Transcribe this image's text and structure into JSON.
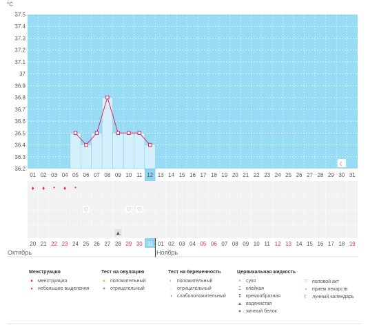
{
  "chart_data": {
    "type": "bar",
    "unit_label": "°C",
    "y_ticks": [
      "37.5",
      "37.4",
      "37.3",
      "37.2",
      "37.1",
      "37",
      "36.9",
      "36.8",
      "36.7",
      "36.6",
      "36.5",
      "36.4",
      "36.3",
      "36.2"
    ],
    "ylim": [
      36.2,
      37.5
    ],
    "grid": true,
    "days_top": [
      "01",
      "02",
      "03",
      "04",
      "05",
      "06",
      "07",
      "08",
      "09",
      "10",
      "11",
      "12",
      "13",
      "14",
      "15",
      "16",
      "17",
      "18",
      "19",
      "20",
      "21",
      "22",
      "23",
      "24",
      "25",
      "26",
      "27",
      "28",
      "29",
      "30",
      "31"
    ],
    "days_bottom": [
      "20",
      "21",
      "22",
      "23",
      "24",
      "25",
      "26",
      "27",
      "28",
      "29",
      "30",
      "31",
      "01",
      "02",
      "03",
      "04",
      "05",
      "06",
      "07",
      "08",
      "09",
      "10",
      "11",
      "12",
      "13",
      "14",
      "15",
      "16",
      "17",
      "18",
      "19"
    ],
    "days_bottom_red": [
      false,
      false,
      true,
      true,
      false,
      false,
      false,
      false,
      false,
      true,
      true,
      false,
      false,
      false,
      false,
      false,
      true,
      true,
      false,
      false,
      false,
      false,
      false,
      true,
      true,
      false,
      false,
      false,
      false,
      false,
      true
    ],
    "selected_index": 11,
    "months": [
      "Октябрь",
      "Ноябрь"
    ],
    "temperatures": [
      null,
      null,
      null,
      null,
      36.5,
      36.4,
      36.5,
      36.8,
      36.5,
      36.5,
      36.5,
      36.4,
      null,
      null,
      null,
      null,
      null,
      null,
      null,
      null,
      null,
      null,
      null,
      null,
      null,
      null,
      null,
      null,
      null,
      null,
      null
    ],
    "moon_day_index": 29,
    "menstruation_rows": {
      "menstruation": [
        true,
        true,
        false,
        true,
        false,
        false,
        false,
        false,
        false,
        false,
        false,
        false,
        false,
        false,
        false,
        false,
        false,
        false,
        false,
        false,
        false,
        false,
        false,
        false,
        false,
        false,
        false,
        false,
        false,
        false,
        false
      ],
      "light_discharge": [
        false,
        false,
        true,
        false,
        true,
        false,
        false,
        false,
        false,
        false,
        false,
        false,
        false,
        false,
        false,
        false,
        false,
        false,
        false,
        false,
        false,
        false,
        false,
        false,
        false,
        false,
        false,
        false,
        false,
        false,
        false
      ]
    },
    "intercourse_days": [
      5,
      9,
      10
    ],
    "watery_fluid_days": [
      8
    ],
    "colors": {
      "plot_bg": "#97dbf5",
      "bar_fill": "#d4f0fc",
      "line": "#e0245e",
      "selected_day": "#8fd3ee",
      "row_bg": "#f2f2f2",
      "red_text": "#e0245e"
    }
  },
  "legend": {
    "menstruation": {
      "title": "Менструация",
      "items": [
        "менструация",
        "небольшие выделения"
      ]
    },
    "ovulation": {
      "title": "Тест на овуляцию",
      "items": [
        "положительный",
        "отрицательный"
      ]
    },
    "pregnancy": {
      "title": "Тест на беременность",
      "items": [
        "положительный",
        "отрицательный",
        "слабоположительный"
      ]
    },
    "fluid": {
      "title": "Цервикальная жидкость",
      "items": [
        "сухо",
        "клейкая",
        "кремообразная",
        "водянистая",
        "яичный белок"
      ]
    },
    "other": {
      "items": [
        "половой акт",
        "прием лекарств",
        "лунный календарь"
      ]
    }
  }
}
